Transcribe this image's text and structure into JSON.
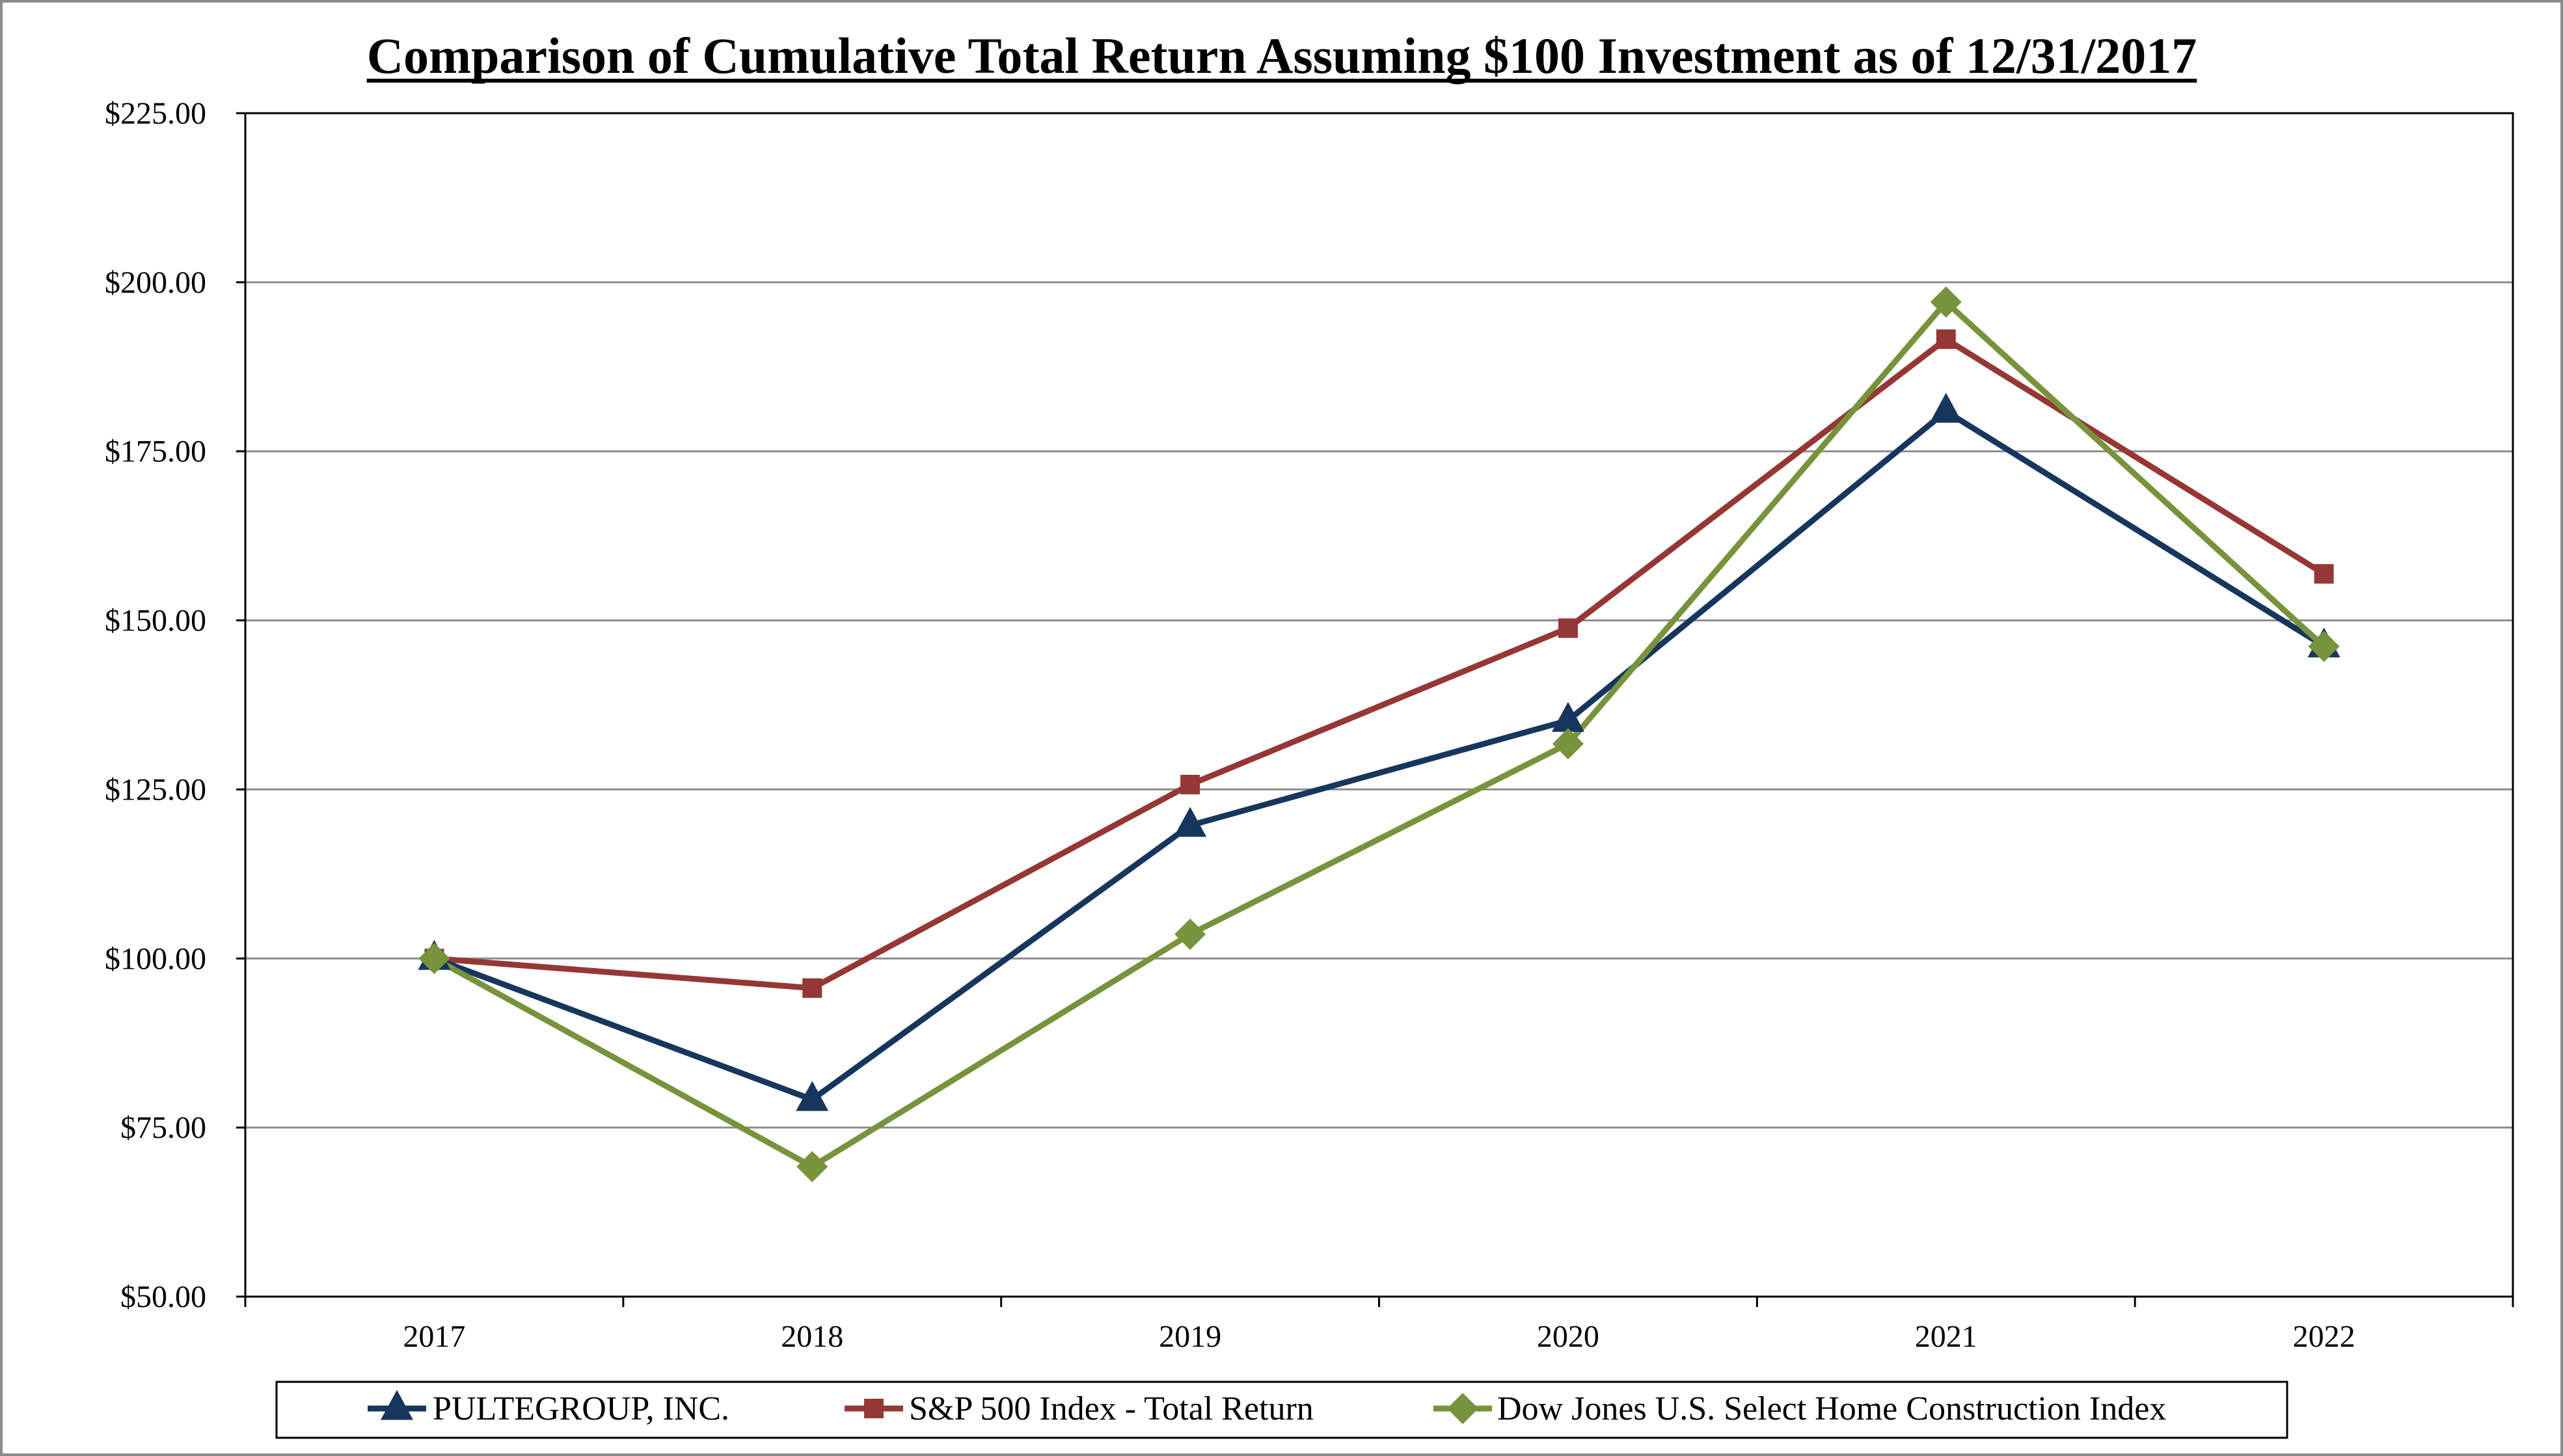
{
  "chart_data": {
    "type": "line",
    "title": "Comparison of Cumulative Total Return Assuming $100 Investment as of 12/31/2017",
    "xlabel": "",
    "ylabel": "",
    "categories": [
      "2017",
      "2018",
      "2019",
      "2020",
      "2021",
      "2022"
    ],
    "ylim": [
      50,
      225
    ],
    "yticks": [
      50,
      75,
      100,
      125,
      150,
      175,
      200,
      225
    ],
    "ytick_labels": [
      "$50.00",
      "$75.00",
      "$100.00",
      "$125.00",
      "$150.00",
      "$175.00",
      "$200.00",
      "$225.00"
    ],
    "grid": true,
    "legend_position": "bottom",
    "series": [
      {
        "name": "PULTEGROUP, INC.",
        "color": "#17365d",
        "marker": "triangle",
        "values": [
          100.0,
          79.14,
          119.68,
          135.2,
          180.91,
          146.21
        ]
      },
      {
        "name": "S&P 500 Index - Total Return",
        "color": "#953735",
        "marker": "square",
        "values": [
          100.0,
          95.62,
          125.72,
          148.85,
          191.58,
          156.88
        ]
      },
      {
        "name": "Dow Jones U.S. Select Home Construction Index",
        "color": "#77933c",
        "marker": "diamond",
        "values": [
          100.0,
          69.22,
          103.59,
          131.75,
          197.07,
          146.15
        ]
      }
    ]
  }
}
